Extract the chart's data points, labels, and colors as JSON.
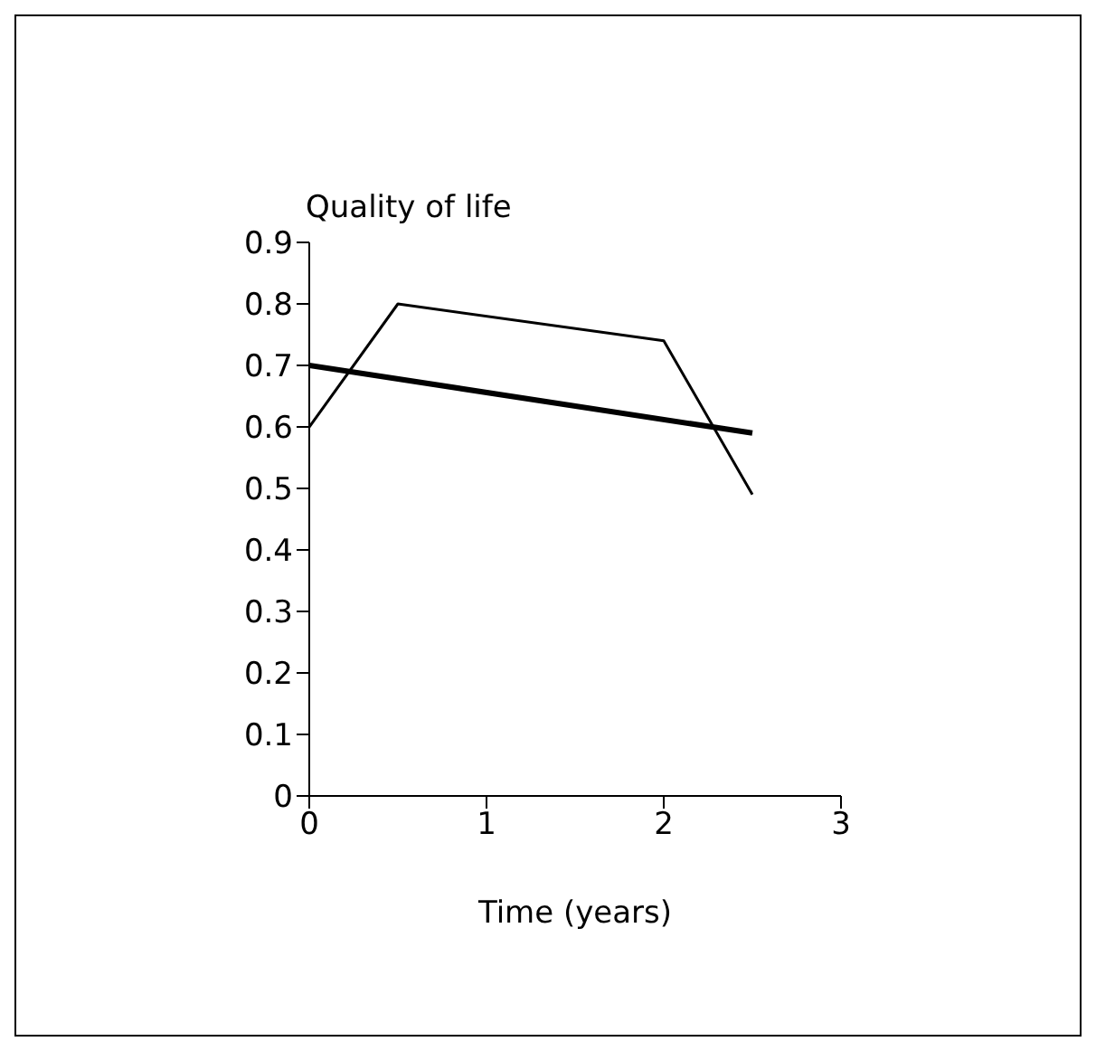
{
  "chart_data": {
    "type": "line",
    "xlabel": "Time (years)",
    "ylabel": "Quality of life",
    "xlim": [
      0,
      3
    ],
    "xticks": [
      0,
      1,
      2,
      3
    ],
    "ylim": [
      0,
      0.9
    ],
    "yticks": [
      0,
      0.1,
      0.2,
      0.3,
      0.4,
      0.5,
      0.6,
      0.7,
      0.8,
      0.9
    ],
    "grid": false,
    "legend": false,
    "marker": "none",
    "line_style": "solid",
    "series": [
      {
        "color": "#000000",
        "x": [
          0,
          0.5,
          2,
          2.5
        ],
        "values": [
          0.6,
          0.8,
          0.74,
          0.49
        ]
      },
      {
        "color": "#000000",
        "x": [
          0,
          2.5
        ],
        "values": [
          0.7,
          0.59
        ]
      }
    ]
  }
}
